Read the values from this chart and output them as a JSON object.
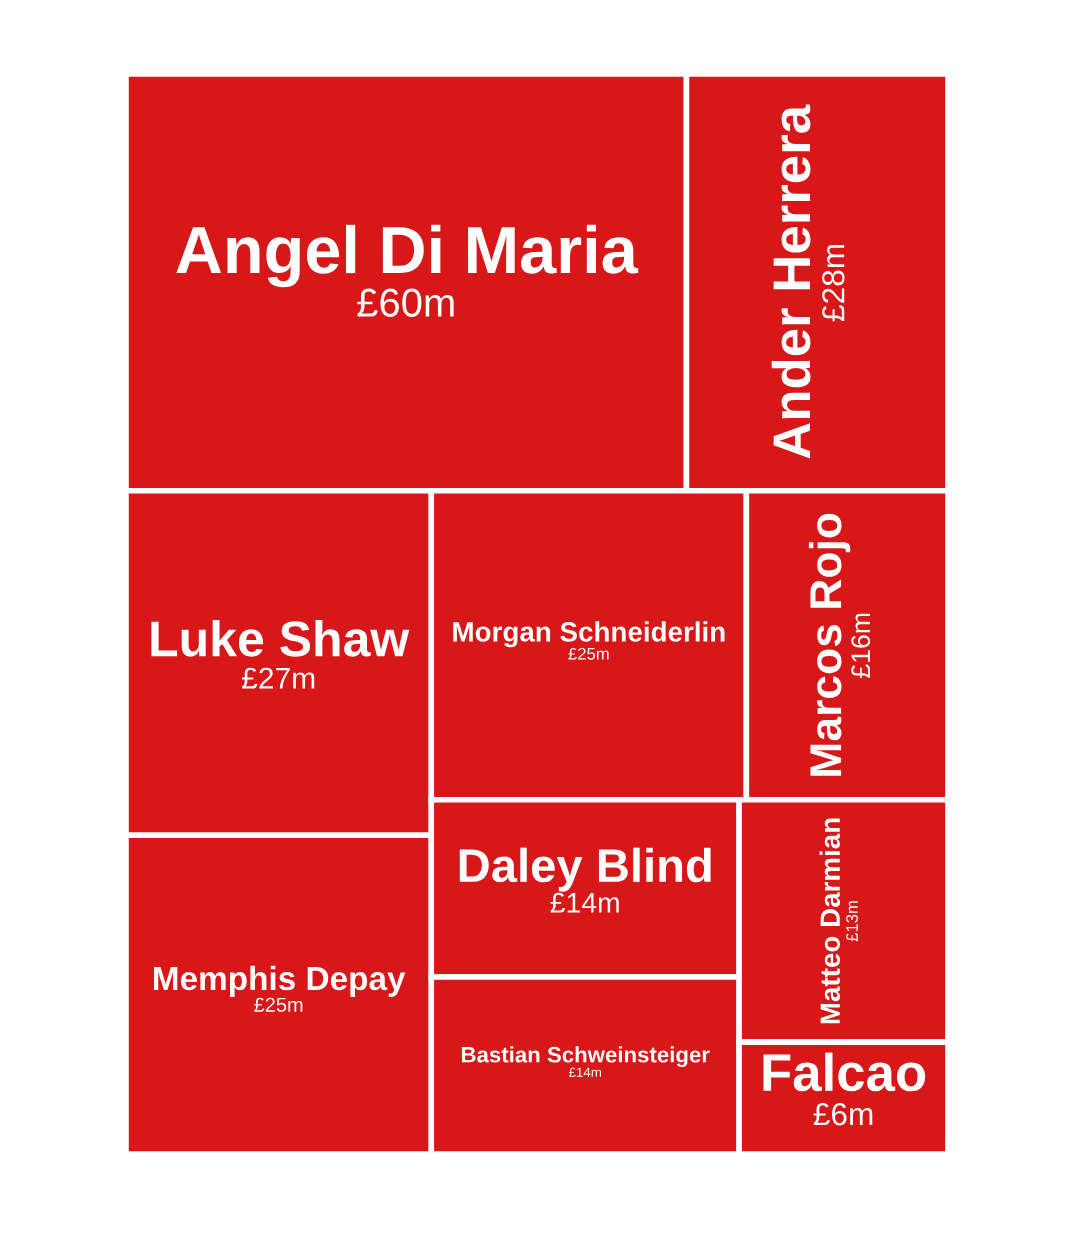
{
  "chart_data": {
    "type": "other",
    "color": "#d81719",
    "categories": [
      "Angel Di Maria",
      "Ander Herrera",
      "Luke Shaw",
      "Memphis Depay",
      "Morgan Schneiderlin",
      "Marcos Rojo",
      "Daley Blind",
      "Bastian Schweinsteiger",
      "Matteo Darmian",
      "Falcao"
    ],
    "values": [
      60,
      28,
      27,
      25,
      25,
      16,
      14,
      14,
      13,
      6
    ],
    "value_labels": [
      "£60m",
      "£28m",
      "£27m",
      "£25m",
      "£25m",
      "£16m",
      "£14m",
      "£14m",
      "£13m",
      "£6m"
    ]
  }
}
